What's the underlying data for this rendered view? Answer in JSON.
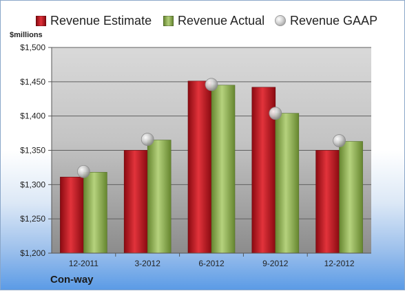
{
  "units_label": "$millions",
  "footer": "Con-way",
  "colors": {
    "estimate": "#c0141c",
    "actual": "#8fb055",
    "gaap": "#c8c8c8"
  },
  "chart_data": {
    "type": "bar",
    "categories": [
      "12-2011",
      "3-2012",
      "6-2012",
      "9-2012",
      "12-2012"
    ],
    "series": [
      {
        "name": "Revenue Estimate",
        "kind": "bar",
        "values": [
          1311,
          1350,
          1451,
          1442,
          1350
        ]
      },
      {
        "name": "Revenue Actual",
        "kind": "bar",
        "values": [
          1318,
          1365,
          1445,
          1404,
          1363
        ]
      },
      {
        "name": "Revenue GAAP",
        "kind": "marker",
        "values": [
          1319,
          1366,
          1446,
          1404,
          1364
        ]
      }
    ],
    "ylim": [
      1200,
      1500
    ],
    "yticks": [
      1200,
      1250,
      1300,
      1350,
      1400,
      1450,
      1500
    ],
    "ytick_labels": [
      "$1,200",
      "$1,250",
      "$1,300",
      "$1,350",
      "$1,400",
      "$1,450",
      "$1,500"
    ],
    "ylabel": "$millions",
    "grid": true,
    "legend_position": "top"
  }
}
